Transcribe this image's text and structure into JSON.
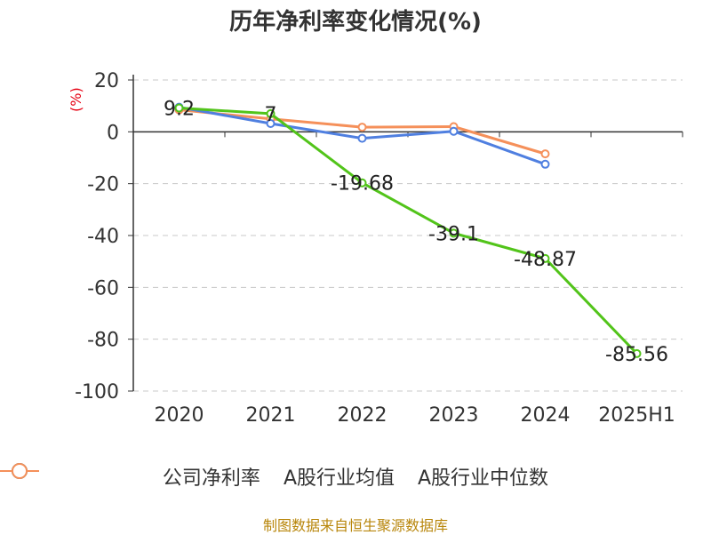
{
  "page": {
    "title": "历年净利率变化情况(%)",
    "unit_label": "(%)",
    "source": "制图数据来自恒生聚源数据库"
  },
  "chart_data": {
    "type": "line",
    "title": "历年净利率变化情况(%)",
    "xlabel": "",
    "ylabel": "(%)",
    "categories": [
      "2020",
      "2021",
      "2022",
      "2023",
      "2024",
      "2025H1"
    ],
    "ylim": [
      -100,
      20
    ],
    "yticks": [
      20,
      0,
      -20,
      -40,
      -60,
      -80,
      -100
    ],
    "grid": "horizontal dashed",
    "legend_position": "bottom",
    "series": [
      {
        "name": "公司净利率",
        "color": "#52c41a",
        "values": [
          9.2,
          7,
          -19.68,
          -39.1,
          -48.87,
          -85.56
        ],
        "labels": [
          "9.2",
          "7",
          "-19.68",
          "-39.1",
          "-48.87",
          "-85.56"
        ]
      },
      {
        "name": "A股行业均值",
        "color": "#4f7fe0",
        "values": [
          9.5,
          3.2,
          -2.5,
          0.2,
          -12.5,
          null
        ]
      },
      {
        "name": "A股行业中位数",
        "color": "#f5905a",
        "values": [
          8.5,
          5.0,
          1.8,
          2.0,
          -8.5,
          null
        ]
      }
    ]
  }
}
